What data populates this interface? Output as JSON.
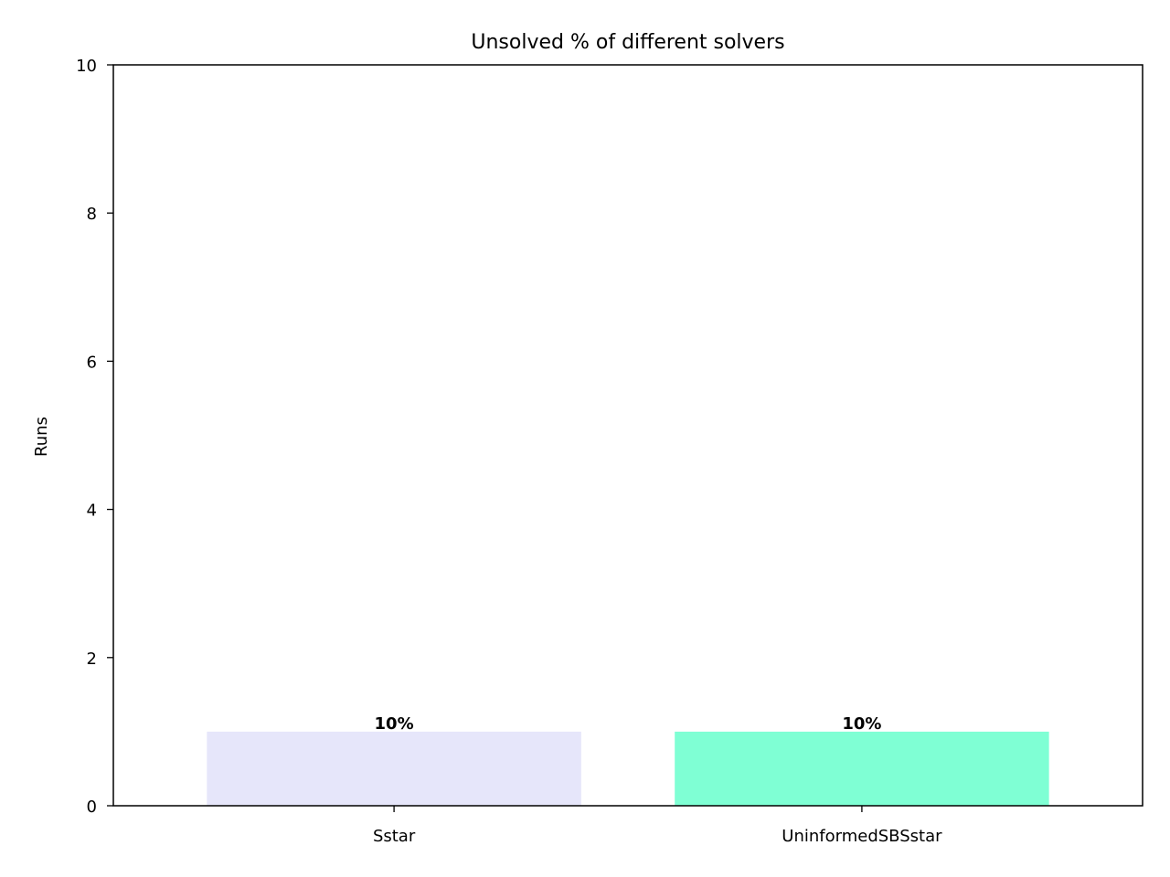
{
  "chart_data": {
    "type": "bar",
    "title": "Unsolved % of different solvers",
    "ylabel": "Runs",
    "xlabel": "",
    "ylim": [
      0,
      10
    ],
    "yticks": [
      0,
      2,
      4,
      6,
      8,
      10
    ],
    "categories": [
      "Sstar",
      "UninformedSBSstar"
    ],
    "values": [
      1,
      1
    ],
    "data_labels": [
      "10%",
      "10%"
    ],
    "colors": [
      "#e6e6fa",
      "#7fffd4"
    ],
    "grid": false,
    "legend": "none"
  }
}
